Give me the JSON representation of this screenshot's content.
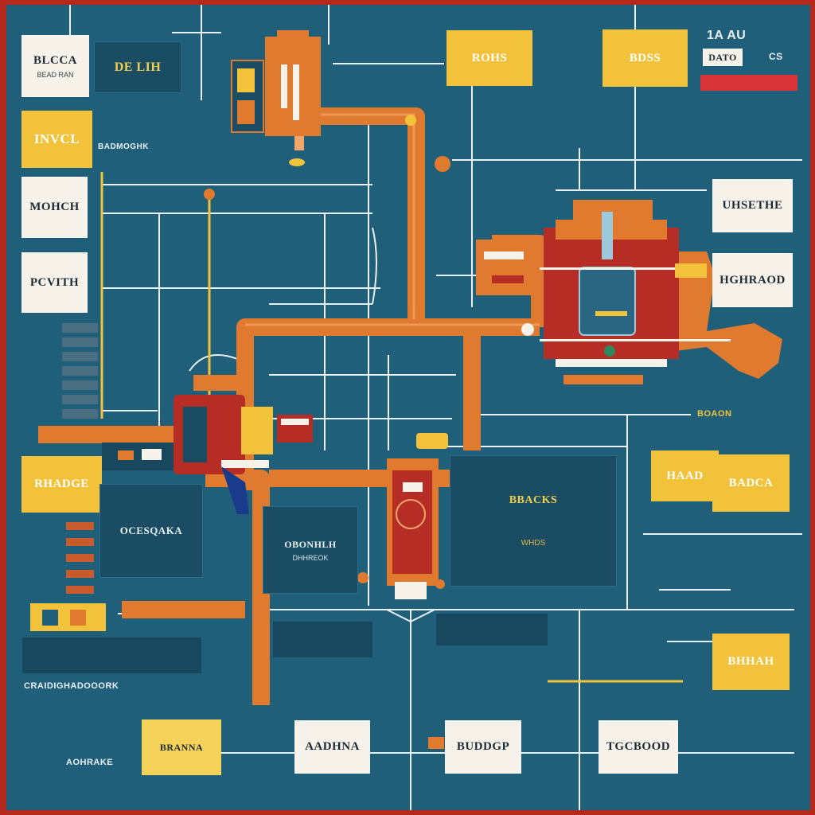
{
  "palette": {
    "board": "#1f5f7a",
    "frame": "#b5281c",
    "pipe": "#e07a2e",
    "accent_yellow": "#f2c33a",
    "accent_red": "#b52d25",
    "line": "#e9f1f5",
    "panel_dark": "#1a4d63"
  },
  "header": {
    "top_right_title": "1A AU",
    "top_right_tag": "DATO",
    "top_right_code": "CS"
  },
  "top_row": {
    "box1_title": "BLCCA",
    "box1_sub": "BEAD RAN",
    "panel_title": "DE LIH",
    "box2_title": "ROHS",
    "box3_title": "BDSS"
  },
  "left_column": {
    "box1_title": "INVCL",
    "box1_caption": "BADMOGHK",
    "box2_title": "MOHCH",
    "box3_title": "PCVITH",
    "box4_title": "RHADGE",
    "panel_title": "OCESQAKA",
    "bottom_caption": "CRAIDIGHADOOORK",
    "bottom_caption2": "AOHRAKE"
  },
  "right_column": {
    "box1_title": "UHSETHE",
    "box2_title": "HGHRAOD",
    "tag": "BOAON",
    "box3_title_a": "HAAD",
    "box3_title_b": "BADCA",
    "box4_title": "BHHAH"
  },
  "center": {
    "panel_a_title": "OBONHLH",
    "panel_a_sub": "DHHREOK",
    "panel_b_title": "BBACKS",
    "panel_b_sub": "WHDS"
  },
  "bottom_row": {
    "box1_title": "BRANNA",
    "box2_title": "AADHNA",
    "box3_title": "BUDDGP",
    "box4_title": "TGCBOOD"
  }
}
